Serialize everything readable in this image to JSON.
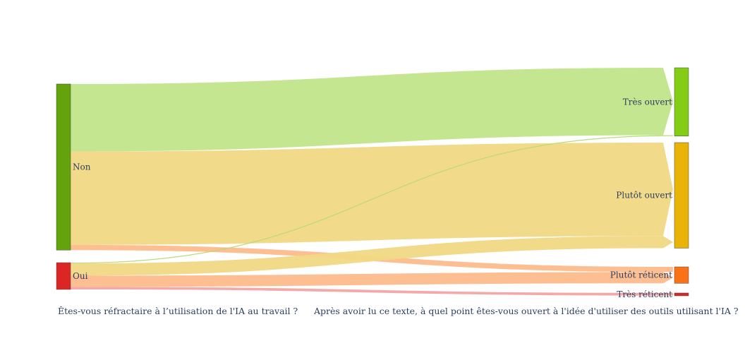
{
  "chart_data": {
    "type": "sankey",
    "title": "",
    "columns": [
      "Êtes-vous réfractaire à l’utilisation de l'IA au travail ?",
      "Après avoir lu ce texte, à quel point êtes-vous ouvert à l'idée d'utiliser des outils utilisant l'IA ?"
    ],
    "nodes": [
      {
        "id": "non",
        "label": "Non",
        "column": 0,
        "color": "#65a30d"
      },
      {
        "id": "oui",
        "label": "Oui",
        "column": 0,
        "color": "#dc2626"
      },
      {
        "id": "tres_ouvert",
        "label": "Très ouvert",
        "column": 1,
        "color": "#84cc16"
      },
      {
        "id": "plutot_ouvert",
        "label": "Plutôt ouvert",
        "column": 1,
        "color": "#eab308"
      },
      {
        "id": "plutot_reticent",
        "label": "Plutôt réticent",
        "column": 1,
        "color": "#f97316"
      },
      {
        "id": "tres_reticent",
        "label": "Très réticent",
        "column": 1,
        "color": "#dc2626"
      }
    ],
    "links": [
      {
        "source": "non",
        "target": "tres_ouvert",
        "value": 39,
        "color": "#c2e58a"
      },
      {
        "source": "non",
        "target": "plutot_ouvert",
        "value": 54,
        "color": "#f1d885"
      },
      {
        "source": "non",
        "target": "plutot_reticent",
        "value": 3,
        "color": "#fdba8c"
      },
      {
        "source": "oui",
        "target": "tres_ouvert",
        "value": 0.5,
        "color": "#b5db6f"
      },
      {
        "source": "oui",
        "target": "plutot_ouvert",
        "value": 7,
        "color": "#f1d885"
      },
      {
        "source": "oui",
        "target": "plutot_reticent",
        "value": 6.5,
        "color": "#fdba8c"
      },
      {
        "source": "oui",
        "target": "tres_reticent",
        "value": 1.5,
        "color": "#f4a3a3"
      }
    ]
  }
}
